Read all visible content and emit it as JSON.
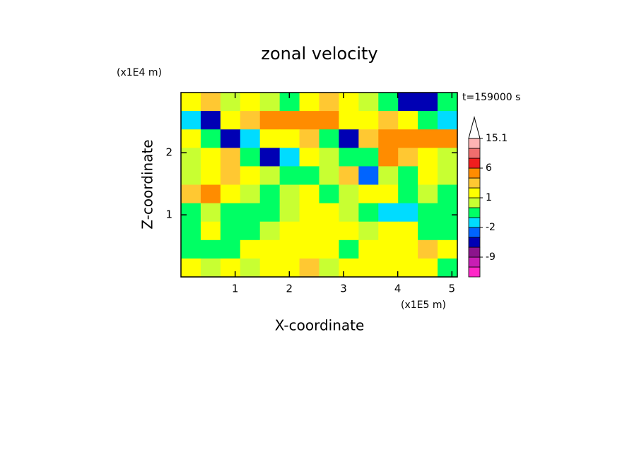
{
  "chart_data": {
    "type": "contour",
    "title": "zonal velocity",
    "x_label": "X-coordinate",
    "y_label": "Z-coordinate",
    "x_unit": "(x1E5 m)",
    "y_unit": "(x1E4 m)",
    "annotation": "t=159000 s",
    "xlim": [
      0,
      5.1
    ],
    "ylim": [
      0,
      2.97
    ],
    "xticks": [
      1,
      2,
      3,
      4,
      5
    ],
    "yticks": [
      1,
      2
    ],
    "z": [
      [
        1,
        2,
        0.5,
        1,
        0,
        -1,
        1,
        2,
        1,
        0,
        -1,
        -4,
        -4,
        -1
      ],
      [
        -2,
        -4,
        1,
        2,
        3,
        3,
        4,
        3,
        1,
        1,
        2,
        1,
        -1,
        -2
      ],
      [
        1,
        -1,
        -4,
        -2,
        1,
        1,
        2,
        -1,
        -4,
        2,
        4,
        4,
        4,
        3
      ],
      [
        0,
        1,
        2,
        -1,
        -5,
        -2,
        1,
        0,
        -1,
        -1,
        3,
        2,
        1,
        0
      ],
      [
        0,
        1,
        2,
        1,
        0,
        -1,
        -1,
        0,
        2,
        -3,
        0,
        -1,
        1,
        0
      ],
      [
        2,
        3,
        1,
        0,
        -1,
        0,
        1,
        -1,
        0,
        1,
        1,
        -1,
        0,
        -1
      ],
      [
        -1,
        0,
        -1,
        -1,
        -1,
        0,
        1,
        1,
        0,
        -1,
        -2,
        -2,
        -1,
        -1
      ],
      [
        -1,
        1,
        -1,
        -1,
        0,
        1,
        1,
        1,
        1,
        0,
        1,
        1,
        -1,
        -1
      ],
      [
        -1,
        -1,
        -1,
        1,
        1,
        1,
        1,
        1,
        -1,
        1,
        1,
        1,
        2,
        1
      ],
      [
        1,
        0,
        1,
        0,
        1,
        1,
        2,
        0,
        1,
        1,
        1,
        1,
        1,
        -1
      ]
    ],
    "colorbar": {
      "bounds": [
        -15,
        -12,
        -9,
        -6,
        -3,
        -2,
        -1,
        0,
        1,
        2,
        3,
        6,
        9,
        12,
        15.1
      ],
      "colors": [
        "#ff28c8",
        "#c81eb4",
        "#8c148c",
        "#0000b4",
        "#0064ff",
        "#00dcff",
        "#00ff64",
        "#c8ff32",
        "#ffff00",
        "#ffc832",
        "#ff8c00",
        "#f01e1e",
        "#f06e6e",
        "#ffb4b4"
      ],
      "ticks": [
        -9,
        -2,
        1,
        6,
        15.1
      ]
    }
  }
}
